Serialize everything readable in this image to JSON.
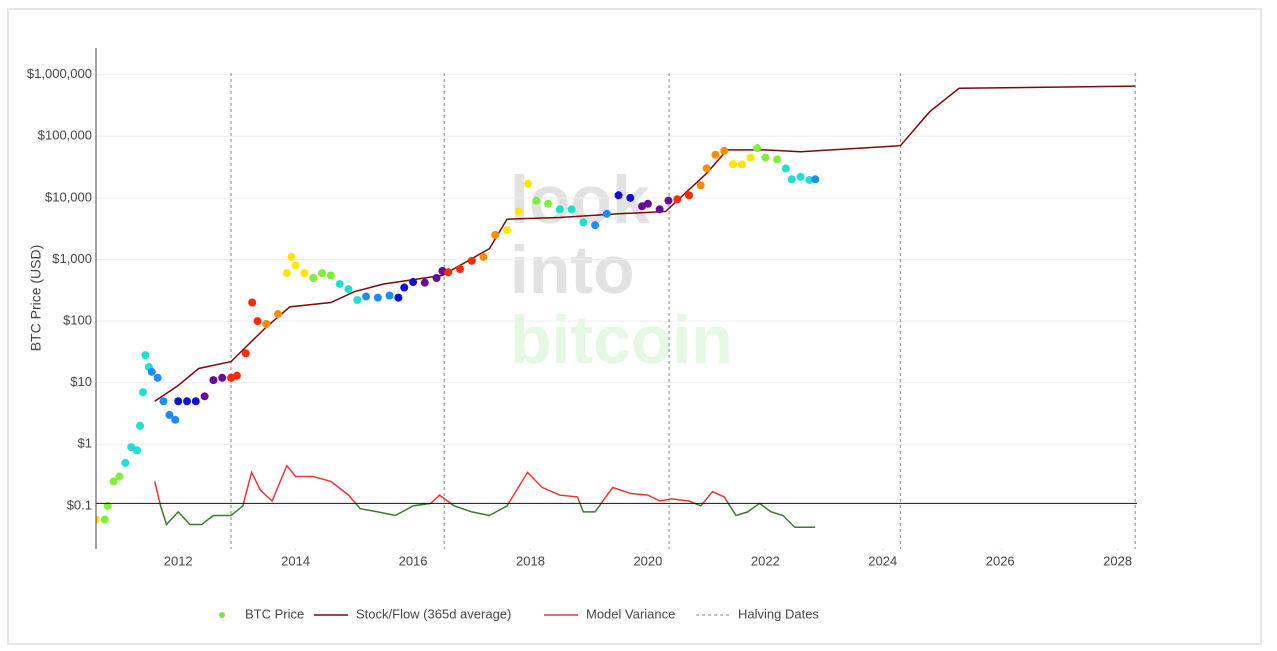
{
  "chart_data": {
    "type": "stock-to-flow",
    "y_axis_label": "BTC Price (USD)",
    "watermark": [
      "look",
      "into",
      "bitcoin"
    ],
    "watermark_colors": [
      "#e2e2e2",
      "#e2e2e2",
      "#e4f8e4"
    ],
    "log_y": true,
    "grid": true,
    "legend": "bottom",
    "xlim": [
      2010.6,
      2028.33
    ],
    "xticks": [
      2012,
      2014,
      2016,
      2018,
      2020,
      2022,
      2024,
      2026,
      2028
    ],
    "ylim": [
      0.02,
      2700000
    ],
    "yticks": [
      {
        "value": 0.1,
        "label": "$0.1"
      },
      {
        "value": 1,
        "label": "$1"
      },
      {
        "value": 10,
        "label": "$10"
      },
      {
        "value": 100,
        "label": "$100"
      },
      {
        "value": 1000,
        "label": "$1,000"
      },
      {
        "value": 10000,
        "label": "$10,000"
      },
      {
        "value": 100000,
        "label": "$100,000"
      },
      {
        "value": 1000000,
        "label": "$1,000,000"
      }
    ],
    "reference_line": 0.11,
    "colorscale": [
      "#ff2a00",
      "#ff8c00",
      "#ffe600",
      "#7ef03a",
      "#1ee0d0",
      "#1c8cff",
      "#1010d0",
      "#6a0a9a"
    ],
    "series": [
      {
        "name": "BTC Price",
        "mode": "markers",
        "color": "#7de34a",
        "x": [
          2010.6,
          2010.75,
          2010.8,
          2010.9,
          2011.0,
          2011.1,
          2011.2,
          2011.3,
          2011.35,
          2011.4,
          2011.44,
          2011.5,
          2011.55,
          2011.65,
          2011.75,
          2011.85,
          2011.95,
          2012.0,
          2012.15,
          2012.3,
          2012.45,
          2012.6,
          2012.75,
          2012.9,
          2013.0,
          2013.15,
          2013.26,
          2013.35,
          2013.5,
          2013.7,
          2013.85,
          2013.93,
          2014.0,
          2014.15,
          2014.3,
          2014.45,
          2014.6,
          2014.75,
          2014.9,
          2015.05,
          2015.2,
          2015.4,
          2015.6,
          2015.75,
          2015.85,
          2016.0,
          2016.2,
          2016.4,
          2016.5,
          2016.6,
          2016.8,
          2017.0,
          2017.2,
          2017.4,
          2017.6,
          2017.8,
          2017.96,
          2018.1,
          2018.3,
          2018.5,
          2018.7,
          2018.9,
          2019.1,
          2019.3,
          2019.5,
          2019.7,
          2019.9,
          2020.0,
          2020.2,
          2020.35,
          2020.5,
          2020.7,
          2020.9,
          2021.0,
          2021.15,
          2021.3,
          2021.45,
          2021.6,
          2021.75,
          2021.86,
          2022.0,
          2022.2,
          2022.35,
          2022.45,
          2022.6,
          2022.75,
          2022.85
        ],
        "values": [
          0.06,
          0.06,
          0.1,
          0.25,
          0.3,
          0.5,
          0.9,
          0.8,
          2,
          7,
          28,
          18,
          15,
          12,
          5,
          3,
          2.5,
          5,
          5,
          5,
          6,
          11,
          12,
          12,
          13,
          30,
          200,
          100,
          90,
          130,
          600,
          1100,
          800,
          600,
          500,
          600,
          550,
          400,
          330,
          220,
          250,
          240,
          260,
          240,
          350,
          430,
          420,
          500,
          650,
          620,
          700,
          950,
          1100,
          2500,
          3000,
          6000,
          17000,
          9000,
          8000,
          6500,
          6500,
          4000,
          3600,
          5500,
          11000,
          10000,
          7300,
          8000,
          6500,
          9000,
          9500,
          11000,
          16000,
          30000,
          50000,
          58000,
          35000,
          35000,
          45000,
          64000,
          45000,
          42000,
          30000,
          20000,
          22000,
          19500,
          20000
        ]
      },
      {
        "name": "Stock/Flow (365d average)",
        "mode": "line",
        "color": "#7a0a0a",
        "x": [
          2011.6,
          2012.0,
          2012.35,
          2012.9,
          2013.5,
          2013.9,
          2014.6,
          2015.0,
          2015.5,
          2016.5,
          2017.3,
          2017.6,
          2018.5,
          2019.5,
          2020.3,
          2020.5,
          2021.0,
          2021.35,
          2022.0,
          2022.6,
          2024.3,
          2024.8,
          2025.3,
          2028.3
        ],
        "values": [
          5,
          9,
          17,
          22,
          80,
          170,
          200,
          300,
          400,
          550,
          1500,
          4500,
          4800,
          5500,
          6000,
          9000,
          25000,
          60000,
          60000,
          56000,
          70000,
          250000,
          600000,
          650000
        ]
      },
      {
        "name": "Model Variance",
        "mode": "variance",
        "color": "#e53935",
        "below_color": "#3a7d2c",
        "x": [
          2011.6,
          2011.7,
          2011.8,
          2012.0,
          2012.2,
          2012.4,
          2012.6,
          2012.9,
          2013.1,
          2013.25,
          2013.4,
          2013.6,
          2013.85,
          2014.0,
          2014.3,
          2014.6,
          2014.9,
          2015.1,
          2015.4,
          2015.7,
          2016.0,
          2016.3,
          2016.45,
          2016.7,
          2017.0,
          2017.3,
          2017.6,
          2017.95,
          2018.2,
          2018.5,
          2018.8,
          2018.9,
          2019.1,
          2019.4,
          2019.7,
          2020.0,
          2020.2,
          2020.4,
          2020.7,
          2020.9,
          2021.1,
          2021.3,
          2021.5,
          2021.7,
          2021.9,
          2022.1,
          2022.3,
          2022.5,
          2022.85
        ],
        "values": [
          0.25,
          0.1,
          0.05,
          0.08,
          0.05,
          0.05,
          0.07,
          0.07,
          0.1,
          0.35,
          0.18,
          0.12,
          0.45,
          0.3,
          0.3,
          0.25,
          0.15,
          0.09,
          0.08,
          0.07,
          0.1,
          0.11,
          0.15,
          0.1,
          0.08,
          0.07,
          0.1,
          0.35,
          0.2,
          0.15,
          0.14,
          0.08,
          0.08,
          0.2,
          0.16,
          0.15,
          0.12,
          0.13,
          0.12,
          0.1,
          0.17,
          0.14,
          0.07,
          0.08,
          0.11,
          0.08,
          0.07,
          0.045,
          0.045
        ]
      },
      {
        "name": "Halving Dates",
        "mode": "vlines",
        "color": "#888888",
        "x": [
          2012.9,
          2016.53,
          2020.36,
          2024.3,
          2028.3
        ]
      }
    ]
  }
}
